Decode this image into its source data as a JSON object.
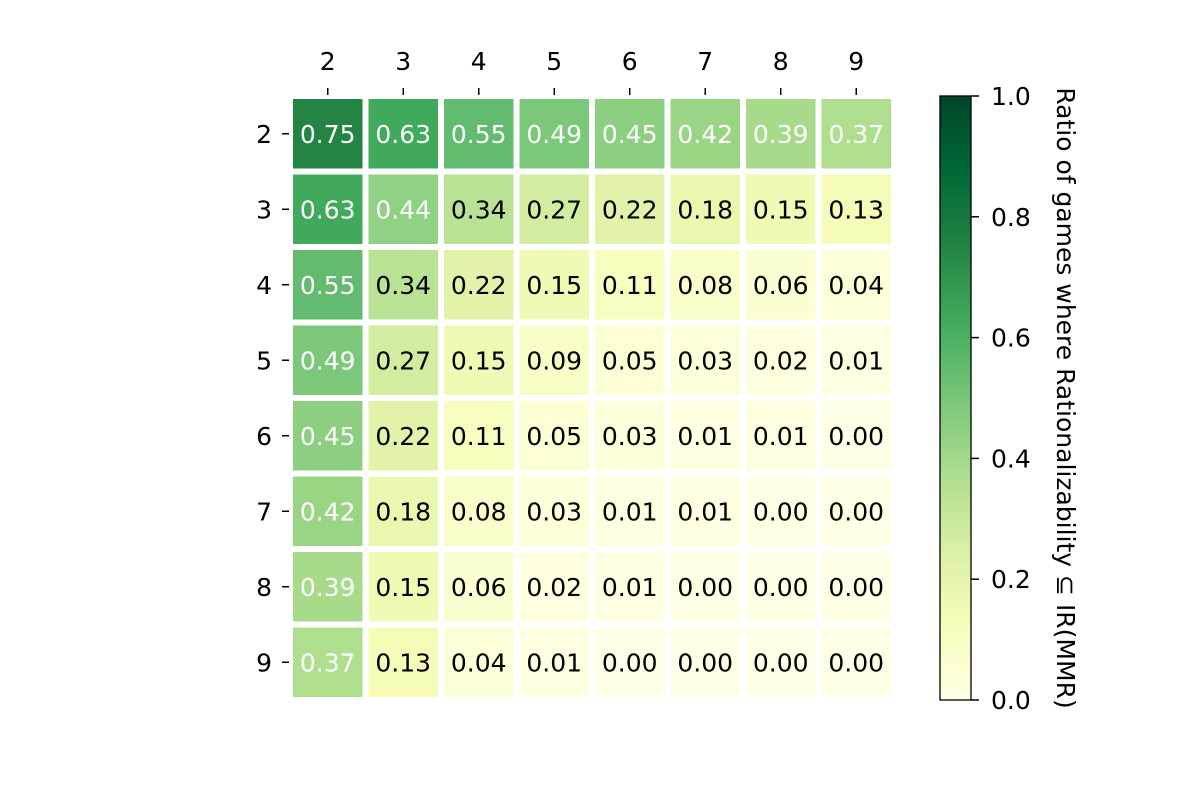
{
  "chart_data": {
    "type": "heatmap",
    "colormap": "YlGn",
    "x_categories": [
      "2",
      "3",
      "4",
      "5",
      "6",
      "7",
      "8",
      "9"
    ],
    "y_categories": [
      "2",
      "3",
      "4",
      "5",
      "6",
      "7",
      "8",
      "9"
    ],
    "x_ticks_position": "top",
    "values": [
      [
        0.75,
        0.63,
        0.55,
        0.49,
        0.45,
        0.42,
        0.39,
        0.37
      ],
      [
        0.63,
        0.44,
        0.34,
        0.27,
        0.22,
        0.18,
        0.15,
        0.13
      ],
      [
        0.55,
        0.34,
        0.22,
        0.15,
        0.11,
        0.08,
        0.06,
        0.04
      ],
      [
        0.49,
        0.27,
        0.15,
        0.09,
        0.05,
        0.03,
        0.02,
        0.01
      ],
      [
        0.45,
        0.22,
        0.11,
        0.05,
        0.03,
        0.01,
        0.01,
        0.0
      ],
      [
        0.42,
        0.18,
        0.08,
        0.03,
        0.01,
        0.01,
        0.0,
        0.0
      ],
      [
        0.39,
        0.15,
        0.06,
        0.02,
        0.01,
        0.0,
        0.0,
        0.0
      ],
      [
        0.37,
        0.13,
        0.04,
        0.01,
        0.0,
        0.0,
        0.0,
        0.0
      ]
    ],
    "value_format_decimals": 2,
    "vmin": 0.0,
    "vmax": 1.0,
    "colorbar": {
      "label": "Ratio of games where Rationalizability ⊆ IR(MMR)",
      "ticks": [
        "0.0",
        "0.2",
        "0.4",
        "0.6",
        "0.8",
        "1.0"
      ],
      "placement": "right"
    },
    "xlabel": "",
    "ylabel": "",
    "title": "",
    "grid": false
  }
}
